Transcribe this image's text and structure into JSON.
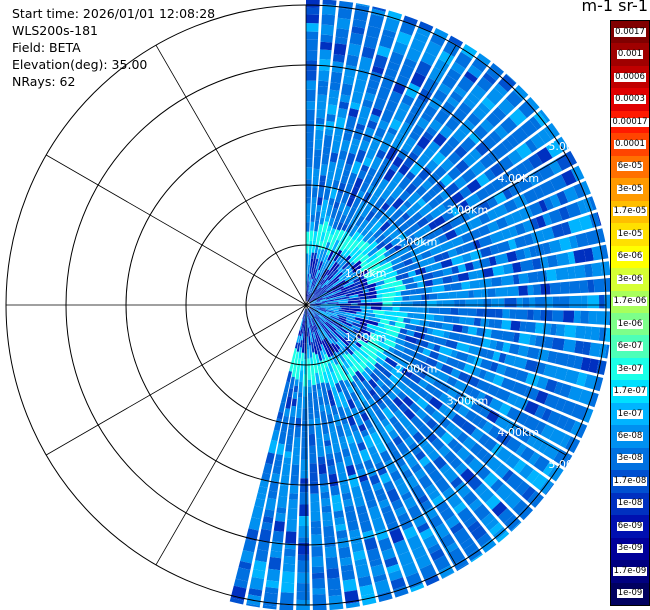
{
  "info": {
    "start_time": "Start time: 2026/01/01 12:08:28",
    "station": "WLS200s-181",
    "field": "Field: BETA",
    "elevation": "Elevation(deg): 35.00",
    "nrays": "NRays: 62"
  },
  "units_label": "m-1 sr-1",
  "colorbar": {
    "labels": [
      "0.0017",
      "0.001",
      "0.0006",
      "0.0003",
      "0.00017",
      "0.0001",
      "6e-05",
      "3e-05",
      "1.7e-05",
      "1e-05",
      "6e-06",
      "3e-06",
      "1.7e-06",
      "1e-06",
      "6e-07",
      "3e-07",
      "1.7e-07",
      "1e-07",
      "6e-08",
      "3e-08",
      "1.7e-08",
      "1e-08",
      "6e-09",
      "3e-09",
      "1.7e-09",
      "1e-09"
    ],
    "colors": [
      "#800000",
      "#a00000",
      "#c00000",
      "#e00000",
      "#ff1a00",
      "#ff4400",
      "#ff7000",
      "#ff9a00",
      "#ffbe00",
      "#ffe000",
      "#ffff00",
      "#d6ff33",
      "#a8ff5c",
      "#7dff8a",
      "#4dffb8",
      "#1affe8",
      "#00e0ff",
      "#00b4ff",
      "#0090f0",
      "#0070e0",
      "#0050d0",
      "#0030c0",
      "#0010b0",
      "#00009a",
      "#000080",
      "#000060"
    ]
  },
  "chart_data": {
    "type": "heatmap",
    "projection": "polar (PPI scan)",
    "field": "BETA",
    "range_unit": "km",
    "range_rings_km": [
      1,
      2,
      3,
      4,
      5
    ],
    "ring_labels": [
      "1.00km",
      "2.00km",
      "3.00km",
      "4.00km",
      "5.00km"
    ],
    "max_range_km": 5.1,
    "azimuth_sector_deg": [
      0,
      195
    ],
    "n_rays": 62,
    "spoke_angles_deg": [
      0,
      30,
      60,
      90,
      120,
      150,
      180,
      210,
      240,
      270,
      300,
      330
    ],
    "colorbar_range": [
      1e-09,
      0.0017
    ],
    "colorbar_scale": "log",
    "pattern": "near-field (< ~1.2 km) high backscatter ~1e-07 to 1e-06 with dark blue speckle, a ring of ~1e-07 (cyan) around 1.0-1.5 km, background ~3e-08 to 6e-08 beyond"
  }
}
